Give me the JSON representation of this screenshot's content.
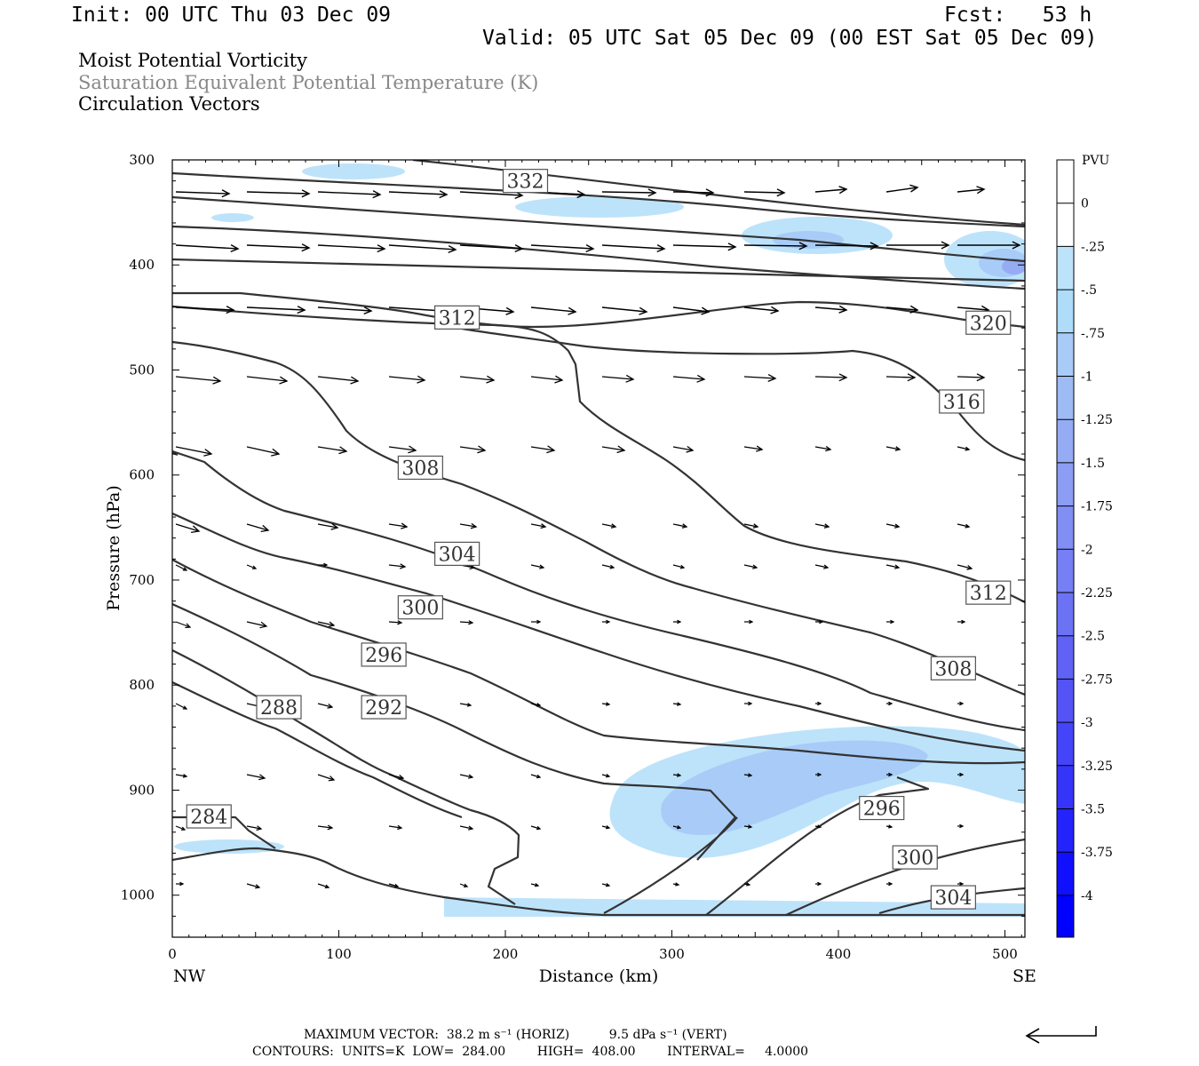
{
  "header": {
    "init": "Init: 00 UTC Thu 03 Dec 09",
    "fcst": "Fcst:   53 h",
    "valid": "Valid: 05 UTC Sat 05 Dec 09 (00 EST Sat 05 Dec 09)"
  },
  "titles": [
    "Moist Potential Vorticity",
    "Saturation Equivalent Potential Temperature (K)",
    "Circulation Vectors"
  ],
  "colors": {
    "title2": "#888888",
    "line": "#333333",
    "frame": "#000000"
  },
  "footer": {
    "max_vector": "MAXIMUM VECTOR:  38.2 m s⁻¹ (HORIZ)          9.5 dPa s⁻¹ (VERT)",
    "contours": "CONTOURS:  UNITS=K  LOW=  284.00        HIGH=  408.00        INTERVAL=     4.0000"
  },
  "chart_data": {
    "type": "cross-section (filled contour + line contour + vectors)",
    "xlabel": "Distance (km)",
    "ylabel": "Pressure (hPa)",
    "x_ticks": [
      0,
      100,
      200,
      300,
      400,
      500
    ],
    "y_ticks": [
      300,
      400,
      500,
      600,
      700,
      800,
      900,
      1000
    ],
    "xlim": [
      0,
      512
    ],
    "ylim": [
      300,
      1040
    ],
    "y_inverted": true,
    "endpoint_labels": {
      "left": "NW",
      "right": "SE"
    },
    "colorbar": {
      "unit": "PVU",
      "tick_labels": [
        "0",
        "-.25",
        "-.5",
        "-.75",
        "-1",
        "-1.25",
        "-1.5",
        "-1.75",
        "-2",
        "-2.25",
        "-2.5",
        "-2.75",
        "-3",
        "-3.25",
        "-3.5",
        "-3.75",
        "-4"
      ],
      "colors": [
        "#ffffff",
        "#ffffff",
        "#bde3fb",
        "#aedcf9",
        "#a8ccf7",
        "#9ebbf5",
        "#95acf5",
        "#8b9df5",
        "#818ef4",
        "#7680f4",
        "#6c72f4",
        "#6062f5",
        "#5353f6",
        "#4444f8",
        "#3535fa",
        "#2323fc",
        "#1010fe",
        "#0000ff"
      ]
    },
    "contour_labels": [
      {
        "text": "332",
        "x": 212,
        "p": 320
      },
      {
        "text": "312",
        "x": 171,
        "p": 450
      },
      {
        "text": "320",
        "x": 490,
        "p": 455
      },
      {
        "text": "316",
        "x": 474,
        "p": 530
      },
      {
        "text": "308",
        "x": 149,
        "p": 593
      },
      {
        "text": "304",
        "x": 171,
        "p": 675
      },
      {
        "text": "312",
        "x": 490,
        "p": 712
      },
      {
        "text": "300",
        "x": 149,
        "p": 726
      },
      {
        "text": "296",
        "x": 127,
        "p": 771
      },
      {
        "text": "308",
        "x": 469,
        "p": 784
      },
      {
        "text": "288",
        "x": 64,
        "p": 821
      },
      {
        "text": "292",
        "x": 127,
        "p": 821
      },
      {
        "text": "284",
        "x": 22,
        "p": 925
      },
      {
        "text": "296",
        "x": 426,
        "p": 917
      },
      {
        "text": "300",
        "x": 446,
        "p": 964
      },
      {
        "text": "304",
        "x": 469,
        "p": 1002
      }
    ],
    "max_vector_horiz": "38.2 m s-1",
    "max_vector_vert": "9.5 dPa s-1",
    "contours": {
      "units": "K",
      "low": 284.0,
      "high": 408.0,
      "interval": 4.0
    }
  }
}
